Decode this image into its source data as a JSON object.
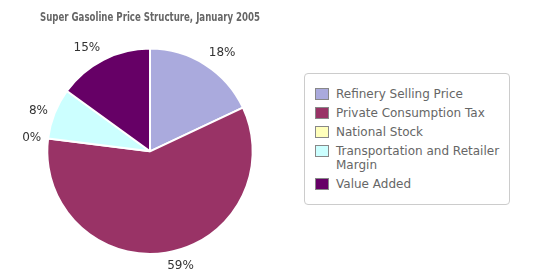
{
  "chart_data": {
    "type": "pie",
    "title": "Super Gasoline Price Structure, January 2005",
    "categories": [
      "Refinery Selling Price",
      "Private Consumption Tax",
      "National Stock",
      "Transportation and Retailer\nMargin",
      "Value Added"
    ],
    "values": [
      18,
      59,
      0,
      8,
      15
    ],
    "value_labels": [
      "18%",
      "59%",
      "0%",
      "8%",
      "15%"
    ],
    "colors": [
      "#aaaadd",
      "#993366",
      "#ffffbb",
      "#ccffff",
      "#660066"
    ],
    "data_labels": true,
    "legend": "right"
  }
}
